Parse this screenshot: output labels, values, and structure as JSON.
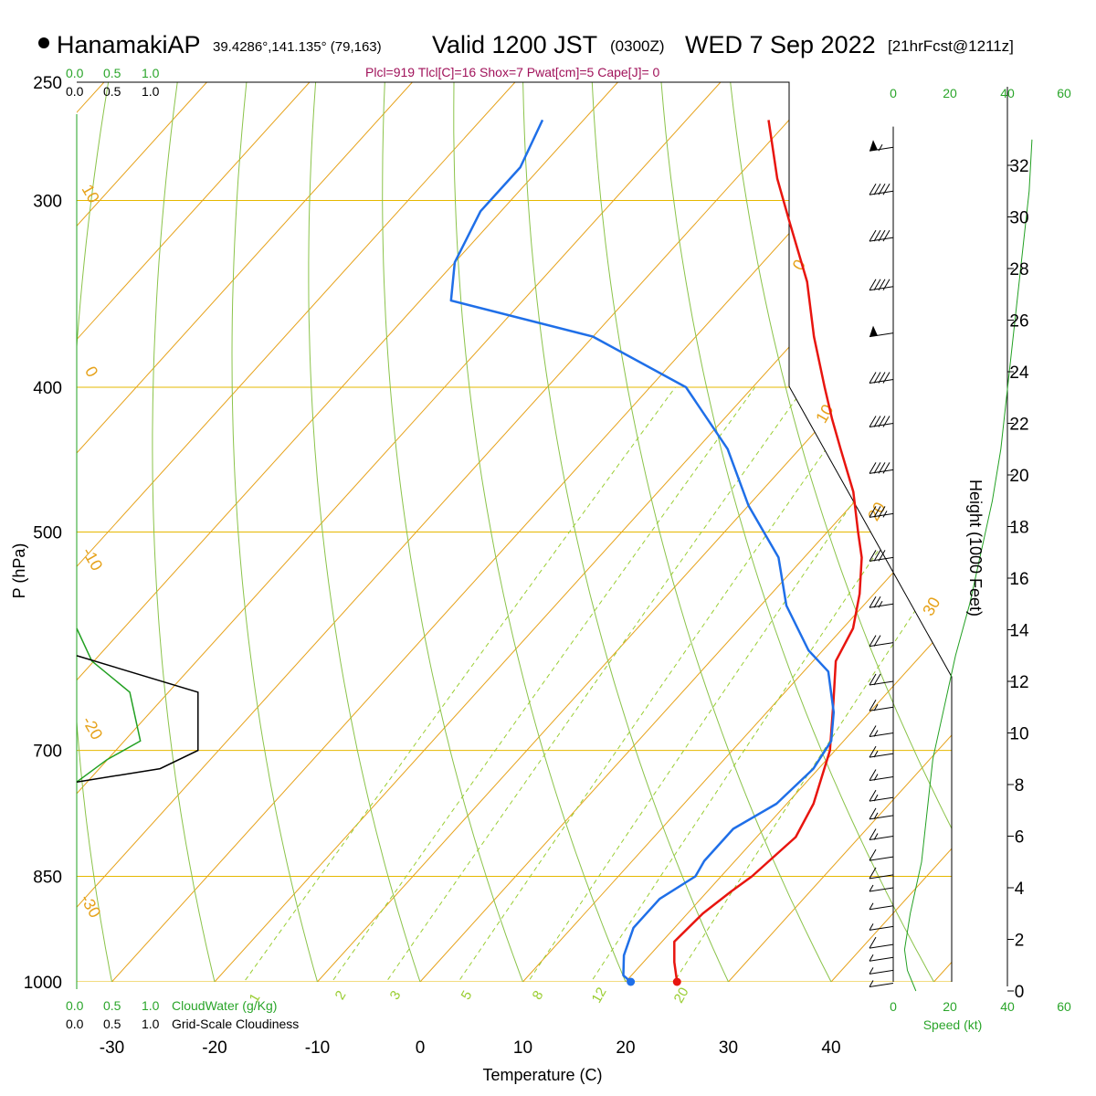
{
  "header": {
    "station": "HanamakiAP",
    "coords": "39.4286°,141.135° (79,163)",
    "valid": "Valid 1200 JST",
    "zulu": "(0300Z)",
    "date": "WED 7 Sep 2022",
    "forecast": "[21hrFcst@1211z]",
    "params": "Plcl=919 Tlcl[C]=16 Shox=7 Pwat[cm]=5 Cape[J]= 0"
  },
  "axes": {
    "ylabel": "P (hPa)",
    "xlabel": "Temperature (C)",
    "height_label": "Height (1000 Feet)",
    "speed_label": "Speed (kt)",
    "cloudwater_label": "CloudWater (g/Kg)",
    "cloudiness_label": "Grid-Scale Cloudiness"
  },
  "colors": {
    "isotherm": "#e6a21a",
    "isobar": "#e6b800",
    "dry_adiabat": "#8bc34a",
    "mixing_ratio": "#9acd32",
    "temperature": "#e8150f",
    "dewpoint": "#1f6fe8",
    "cloud_water": "#22a022",
    "wind_speed": "#22a022",
    "cloudiness": "#000000",
    "params_text": "#a0125a"
  },
  "chart_data": {
    "type": "skew-t",
    "title": "HanamakiAP Valid 1200 JST (0300Z) WED 7 Sep 2022",
    "xlim": [
      -35,
      46
    ],
    "pressure_range": [
      1000,
      250
    ],
    "x_ticks": [
      -30,
      -20,
      -10,
      0,
      10,
      20,
      30,
      40
    ],
    "pressure_labels": [
      250,
      300,
      400,
      500,
      700,
      850,
      1000
    ],
    "height_ticks": [
      0,
      2,
      4,
      6,
      8,
      10,
      12,
      14,
      16,
      18,
      20,
      22,
      24,
      26,
      28,
      30,
      32
    ],
    "cloud_scale_labels": [
      "0.0",
      "0.5",
      "1.0"
    ],
    "speed_ticks": [
      "0",
      "20",
      "40",
      "60"
    ],
    "isotherm_labels": [
      "10",
      "0",
      "-10",
      "-20",
      "-30",
      "0",
      "10",
      "20",
      "30"
    ],
    "mixing_ratio_labels": [
      "1",
      "2",
      "3",
      "5",
      "8",
      "12",
      "20"
    ],
    "temperature": [
      {
        "p": 1000,
        "t": 25.0
      },
      {
        "p": 970,
        "t": 23.0
      },
      {
        "p": 940,
        "t": 21.2
      },
      {
        "p": 900,
        "t": 21.5
      },
      {
        "p": 870,
        "t": 22.3
      },
      {
        "p": 850,
        "t": 23.0
      },
      {
        "p": 800,
        "t": 23.8
      },
      {
        "p": 760,
        "t": 22.6
      },
      {
        "p": 700,
        "t": 19.5
      },
      {
        "p": 650,
        "t": 15.6
      },
      {
        "p": 610,
        "t": 12.2
      },
      {
        "p": 580,
        "t": 11.0
      },
      {
        "p": 550,
        "t": 8.6
      },
      {
        "p": 520,
        "t": 5.6
      },
      {
        "p": 500,
        "t": 3.0
      },
      {
        "p": 470,
        "t": -1.0
      },
      {
        "p": 440,
        "t": -6.0
      },
      {
        "p": 420,
        "t": -9.5
      },
      {
        "p": 400,
        "t": -13.0
      },
      {
        "p": 370,
        "t": -18.5
      },
      {
        "p": 340,
        "t": -24.0
      },
      {
        "p": 310,
        "t": -31.0
      },
      {
        "p": 290,
        "t": -36.0
      },
      {
        "p": 265,
        "t": -42.0
      }
    ],
    "dewpoint": [
      {
        "p": 1000,
        "t": 20.5
      },
      {
        "p": 990,
        "t": 19.2
      },
      {
        "p": 960,
        "t": 17.5
      },
      {
        "p": 920,
        "t": 16.0
      },
      {
        "p": 880,
        "t": 16.0
      },
      {
        "p": 850,
        "t": 17.5
      },
      {
        "p": 830,
        "t": 17.0
      },
      {
        "p": 790,
        "t": 17.0
      },
      {
        "p": 760,
        "t": 19.0
      },
      {
        "p": 720,
        "t": 19.5
      },
      {
        "p": 690,
        "t": 18.8
      },
      {
        "p": 660,
        "t": 16.5
      },
      {
        "p": 620,
        "t": 12.4
      },
      {
        "p": 600,
        "t": 8.6
      },
      {
        "p": 560,
        "t": 2.5
      },
      {
        "p": 520,
        "t": -2.5
      },
      {
        "p": 480,
        "t": -10.0
      },
      {
        "p": 440,
        "t": -17.0
      },
      {
        "p": 400,
        "t": -26.5
      },
      {
        "p": 370,
        "t": -40.0
      },
      {
        "p": 350,
        "t": -57.0
      },
      {
        "p": 330,
        "t": -60.0
      },
      {
        "p": 305,
        "t": -62.0
      },
      {
        "p": 285,
        "t": -62.0
      },
      {
        "p": 265,
        "t": -64.0
      }
    ],
    "wind_speed_profile": [
      {
        "h": 0,
        "v": 8
      },
      {
        "h": 0.8,
        "v": 5
      },
      {
        "h": 1.6,
        "v": 4
      },
      {
        "h": 3,
        "v": 6
      },
      {
        "h": 5,
        "v": 10
      },
      {
        "h": 7,
        "v": 12
      },
      {
        "h": 9,
        "v": 14
      },
      {
        "h": 11,
        "v": 18
      },
      {
        "h": 13,
        "v": 22
      },
      {
        "h": 15,
        "v": 27
      },
      {
        "h": 17,
        "v": 31
      },
      {
        "h": 19,
        "v": 35
      },
      {
        "h": 21,
        "v": 38
      },
      {
        "h": 23,
        "v": 40
      },
      {
        "h": 25,
        "v": 42
      },
      {
        "h": 27,
        "v": 44
      },
      {
        "h": 29,
        "v": 46
      },
      {
        "h": 31,
        "v": 48
      },
      {
        "h": 33,
        "v": 49
      }
    ],
    "wind_barbs": [
      {
        "h": 0.3,
        "kt": 8
      },
      {
        "h": 0.8,
        "kt": 8
      },
      {
        "h": 1.3,
        "kt": 9
      },
      {
        "h": 1.8,
        "kt": 10
      },
      {
        "h": 2.5,
        "kt": 8
      },
      {
        "h": 3.3,
        "kt": 6
      },
      {
        "h": 4.0,
        "kt": 6
      },
      {
        "h": 4.5,
        "kt": 12
      },
      {
        "h": 5.2,
        "kt": 14
      },
      {
        "h": 6.0,
        "kt": 15
      },
      {
        "h": 6.8,
        "kt": 16
      },
      {
        "h": 7.5,
        "kt": 16
      },
      {
        "h": 8.3,
        "kt": 17
      },
      {
        "h": 9.2,
        "kt": 18
      },
      {
        "h": 10.0,
        "kt": 18
      },
      {
        "h": 11.0,
        "kt": 19
      },
      {
        "h": 12.0,
        "kt": 20
      },
      {
        "h": 13.5,
        "kt": 23
      },
      {
        "h": 15.0,
        "kt": 28
      },
      {
        "h": 16.8,
        "kt": 33
      },
      {
        "h": 18.5,
        "kt": 38
      },
      {
        "h": 20.2,
        "kt": 40
      },
      {
        "h": 22.0,
        "kt": 42
      },
      {
        "h": 23.7,
        "kt": 43
      },
      {
        "h": 25.5,
        "kt": 50
      },
      {
        "h": 27.3,
        "kt": 42
      },
      {
        "h": 29.2,
        "kt": 43
      },
      {
        "h": 31.0,
        "kt": 42
      },
      {
        "h": 32.7,
        "kt": 55
      }
    ],
    "cloud_water": [
      {
        "p": 580,
        "v": 0.0
      },
      {
        "p": 610,
        "v": 0.1
      },
      {
        "p": 640,
        "v": 0.35
      },
      {
        "p": 690,
        "v": 0.42
      },
      {
        "p": 710,
        "v": 0.2
      },
      {
        "p": 735,
        "v": 0.0
      }
    ],
    "cloudiness": [
      {
        "p": 605,
        "v": 0.0
      },
      {
        "p": 640,
        "v": 0.8
      },
      {
        "p": 700,
        "v": 0.8
      },
      {
        "p": 720,
        "v": 0.55
      },
      {
        "p": 735,
        "v": 0.0
      }
    ]
  }
}
